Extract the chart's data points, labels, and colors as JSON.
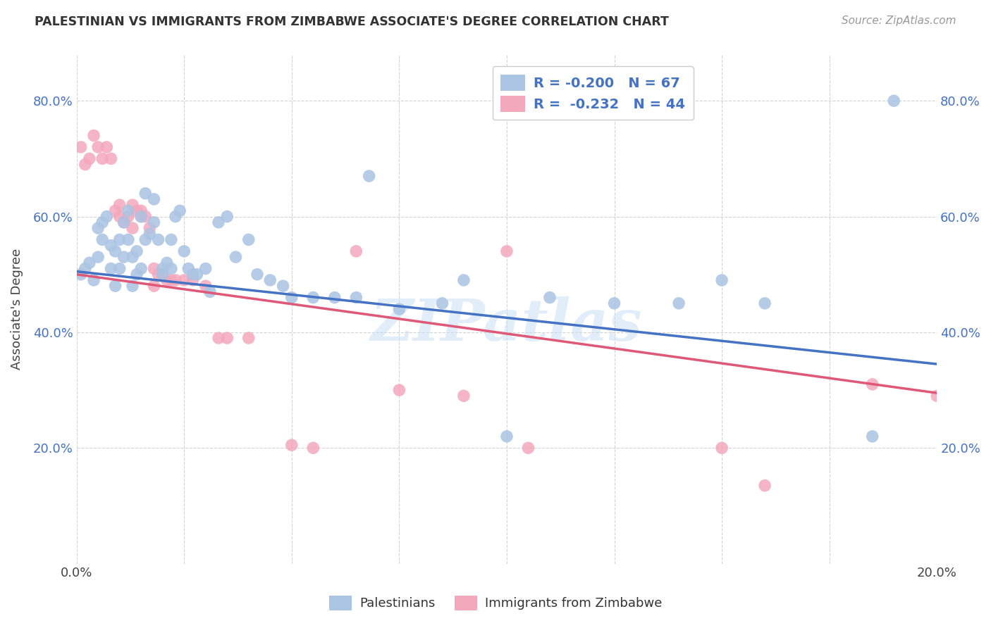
{
  "title": "PALESTINIAN VS IMMIGRANTS FROM ZIMBABWE ASSOCIATE'S DEGREE CORRELATION CHART",
  "source": "Source: ZipAtlas.com",
  "ylabel": "Associate's Degree",
  "watermark": "ZIPatlas",
  "legend_blue_label": "Palestinians",
  "legend_pink_label": "Immigrants from Zimbabwe",
  "blue_R": -0.2,
  "blue_N": 67,
  "pink_R": -0.232,
  "pink_N": 44,
  "blue_color": "#aac4e2",
  "pink_color": "#f4a8bc",
  "blue_line_color": "#4472c4",
  "pink_line_color": "#e05878",
  "background_color": "#ffffff",
  "grid_color": "#c8c8c8",
  "xlim": [
    0.0,
    0.2
  ],
  "ylim": [
    0.0,
    0.88
  ],
  "yticks": [
    0.2,
    0.4,
    0.6,
    0.8
  ],
  "ytick_labels": [
    "20.0%",
    "40.0%",
    "60.0%",
    "80.0%"
  ],
  "xticks": [
    0.0,
    0.025,
    0.05,
    0.075,
    0.1,
    0.125,
    0.15,
    0.175,
    0.2
  ],
  "xtick_labels": [
    "0.0%",
    "",
    "",
    "",
    "",
    "",
    "",
    "",
    "20.0%"
  ],
  "blue_line_x0": 0.0,
  "blue_line_y0": 0.505,
  "blue_line_x1": 0.2,
  "blue_line_y1": 0.345,
  "pink_line_x0": 0.0,
  "pink_line_y0": 0.5,
  "pink_line_x1": 0.2,
  "pink_line_y1": 0.295,
  "blue_x": [
    0.001,
    0.002,
    0.003,
    0.004,
    0.005,
    0.005,
    0.006,
    0.006,
    0.007,
    0.008,
    0.008,
    0.009,
    0.009,
    0.01,
    0.01,
    0.011,
    0.011,
    0.012,
    0.012,
    0.013,
    0.013,
    0.014,
    0.014,
    0.015,
    0.015,
    0.016,
    0.016,
    0.017,
    0.018,
    0.018,
    0.019,
    0.02,
    0.02,
    0.021,
    0.022,
    0.022,
    0.023,
    0.024,
    0.025,
    0.026,
    0.027,
    0.028,
    0.03,
    0.031,
    0.033,
    0.035,
    0.037,
    0.04,
    0.042,
    0.045,
    0.048,
    0.05,
    0.055,
    0.06,
    0.065,
    0.068,
    0.075,
    0.085,
    0.09,
    0.1,
    0.11,
    0.125,
    0.14,
    0.15,
    0.16,
    0.185,
    0.19
  ],
  "blue_y": [
    0.5,
    0.51,
    0.52,
    0.49,
    0.58,
    0.53,
    0.56,
    0.59,
    0.6,
    0.55,
    0.51,
    0.54,
    0.48,
    0.51,
    0.56,
    0.53,
    0.59,
    0.56,
    0.61,
    0.53,
    0.48,
    0.54,
    0.5,
    0.51,
    0.6,
    0.56,
    0.64,
    0.57,
    0.59,
    0.63,
    0.56,
    0.51,
    0.5,
    0.52,
    0.51,
    0.56,
    0.6,
    0.61,
    0.54,
    0.51,
    0.5,
    0.5,
    0.51,
    0.47,
    0.59,
    0.6,
    0.53,
    0.56,
    0.5,
    0.49,
    0.48,
    0.46,
    0.46,
    0.46,
    0.46,
    0.67,
    0.44,
    0.45,
    0.49,
    0.22,
    0.46,
    0.45,
    0.45,
    0.49,
    0.45,
    0.22,
    0.8
  ],
  "pink_x": [
    0.001,
    0.002,
    0.003,
    0.004,
    0.005,
    0.006,
    0.007,
    0.008,
    0.009,
    0.01,
    0.01,
    0.011,
    0.012,
    0.013,
    0.013,
    0.014,
    0.015,
    0.015,
    0.016,
    0.017,
    0.018,
    0.018,
    0.019,
    0.02,
    0.021,
    0.022,
    0.023,
    0.025,
    0.027,
    0.03,
    0.033,
    0.035,
    0.04,
    0.05,
    0.055,
    0.065,
    0.075,
    0.09,
    0.1,
    0.105,
    0.15,
    0.16,
    0.185,
    0.2
  ],
  "pink_y": [
    0.72,
    0.69,
    0.7,
    0.74,
    0.72,
    0.7,
    0.72,
    0.7,
    0.61,
    0.6,
    0.62,
    0.59,
    0.6,
    0.58,
    0.62,
    0.61,
    0.61,
    0.6,
    0.6,
    0.58,
    0.51,
    0.48,
    0.5,
    0.5,
    0.49,
    0.49,
    0.49,
    0.49,
    0.49,
    0.48,
    0.39,
    0.39,
    0.39,
    0.205,
    0.2,
    0.54,
    0.3,
    0.29,
    0.54,
    0.2,
    0.2,
    0.135,
    0.31,
    0.29
  ]
}
